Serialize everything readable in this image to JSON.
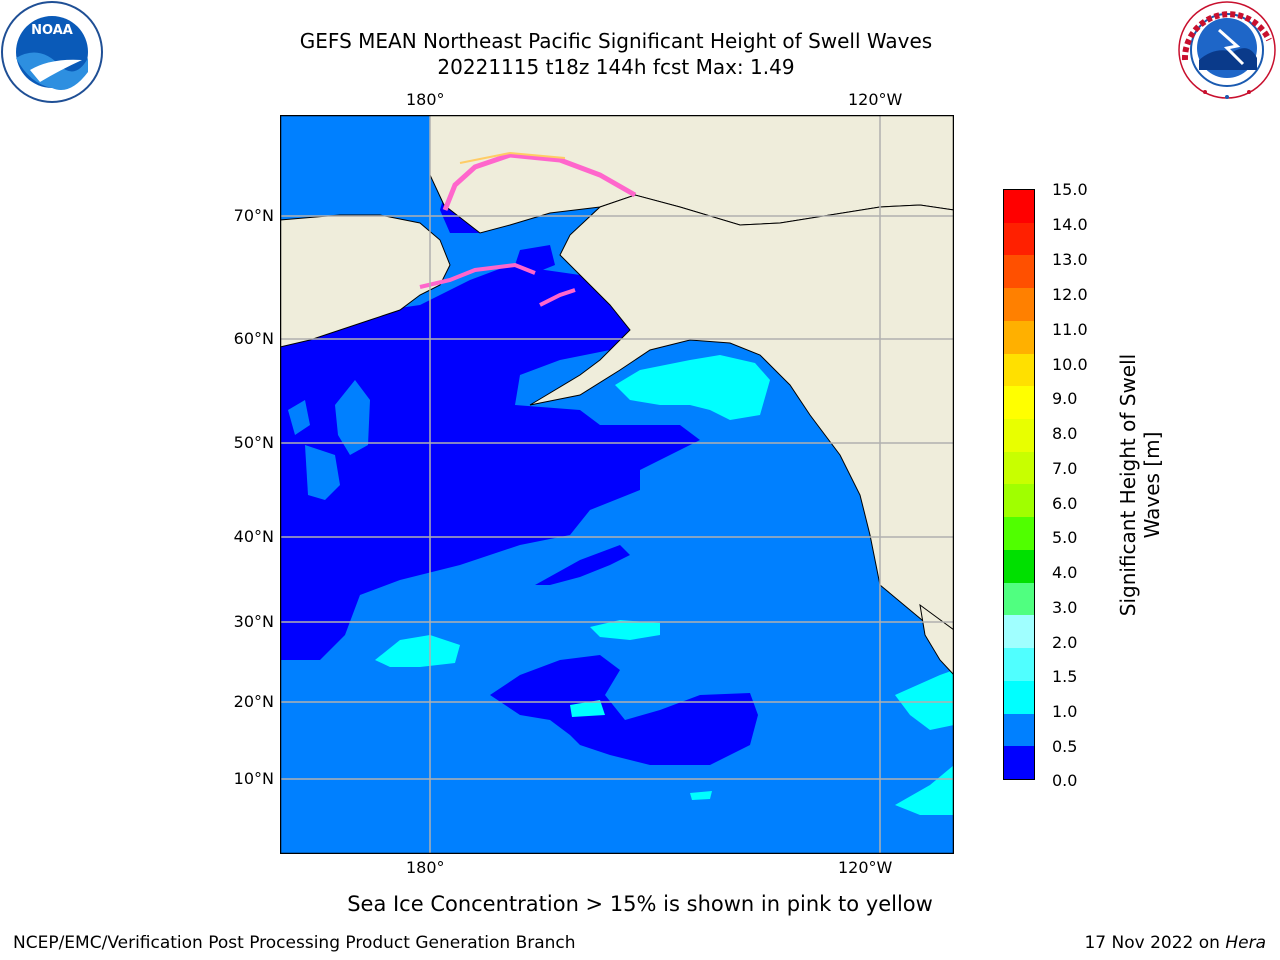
{
  "header": {
    "title_line1": "GEFS MEAN Northeast Pacific Significant Height of Swell Waves",
    "title_line2": "20221115 t18z 144h fcst   Max: 1.49"
  },
  "logos": {
    "noaa": {
      "center_text": "NOAA",
      "ring_text": "NATIONAL OCEANIC AND ATMOSPHERIC ADMINISTRATION",
      "bottom_text": "U.S. DEPARTMENT OF COMMERCE"
    },
    "nws": {
      "ring_text": "NATIONAL WEATHER SERVICE"
    }
  },
  "map": {
    "x_ticks_top": [
      "180°",
      "120°W"
    ],
    "x_ticks_bottom": [
      "180°",
      "120°W"
    ],
    "y_ticks": [
      "70°N",
      "60°N",
      "50°N",
      "40°N",
      "30°N",
      "20°N",
      "10°N"
    ],
    "colors": {
      "land": "#efeddb",
      "ocean_0_05": "#0000ff",
      "ocean_05_10": "#0080ff",
      "ocean_10_15": "#00ffff",
      "ocean_15_20": "#48ffff",
      "ice": "#ff66cc"
    }
  },
  "colorbar": {
    "label_line1": "Significant Height of Swell",
    "label_line2": "Waves [m]",
    "ticks": [
      "15.0",
      "14.0",
      "13.0",
      "12.0",
      "11.0",
      "10.0",
      "9.0",
      "8.0",
      "7.0",
      "6.0",
      "5.0",
      "4.0",
      "3.0",
      "2.0",
      "1.5",
      "1.0",
      "0.5",
      "0.0"
    ],
    "colors": [
      "#ff0000",
      "#ff2000",
      "#ff5000",
      "#ff8000",
      "#ffb000",
      "#ffe000",
      "#ffff00",
      "#e8ff00",
      "#c8ff00",
      "#a0ff00",
      "#50ff00",
      "#00e000",
      "#50ff80",
      "#a0ffff",
      "#50ffff",
      "#00ffff",
      "#0080ff",
      "#0000ff"
    ]
  },
  "notes": {
    "ice_note": "Sea Ice Concentration > 15% is shown in pink to yellow",
    "footer_left": "NCEP/EMC/Verification Post Processing Product Generation Branch",
    "footer_right_date": "17 Nov 2022 on ",
    "footer_right_machine": "Hera"
  }
}
